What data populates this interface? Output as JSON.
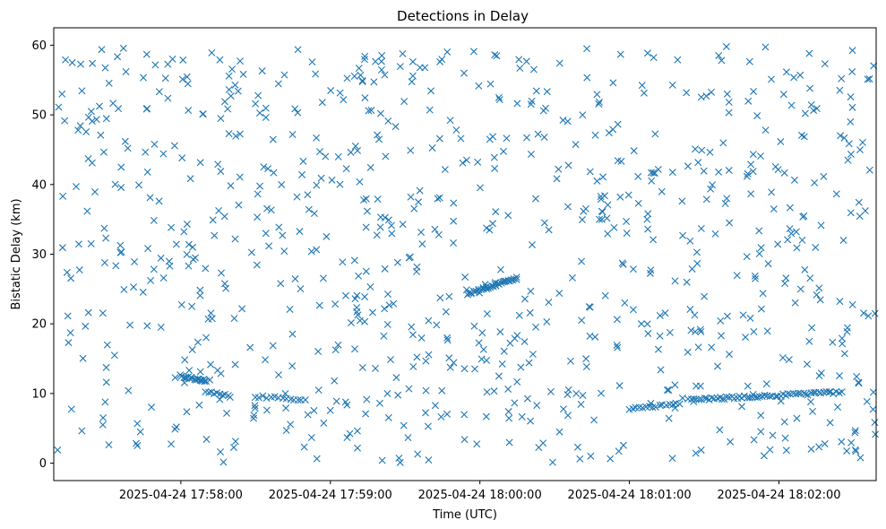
{
  "chart_data": {
    "type": "scatter",
    "title": "Detections in Delay",
    "xlabel": "Time (UTC)",
    "ylabel": "Bistatic Delay (km)",
    "xlim": [
      "2025-04-24 17:57:09",
      "2025-04-24 18:02:39"
    ],
    "ylim": [
      -2.5,
      62.5
    ],
    "x_ticks": [
      "2025-04-24 17:58:00",
      "2025-04-24 17:59:00",
      "2025-04-24 18:00:00",
      "2025-04-24 18:01:00",
      "2025-04-24 18:02:00"
    ],
    "y_ticks": [
      0,
      10,
      20,
      30,
      40,
      50,
      60
    ],
    "grid": false,
    "marker": "x",
    "color": "#1f77b4",
    "x_range_seconds": [
      -171,
      159
    ],
    "noise_seed": 20250424,
    "noise_count": 860,
    "tracks": [
      {
        "t_start": "2025-04-24 17:58:00",
        "t_end": "2025-04-24 17:58:10",
        "y_start": 12.5,
        "y_end": 11.8,
        "count": 18
      },
      {
        "t_start": "2025-04-24 17:58:10",
        "t_end": "2025-04-24 17:58:20",
        "y_start": 10.3,
        "y_end": 9.6,
        "count": 10
      },
      {
        "t_start": "2025-04-24 17:58:30",
        "t_end": "2025-04-24 17:58:50",
        "y_start": 9.6,
        "y_end": 9.1,
        "count": 14
      },
      {
        "t_start": "2025-04-24 17:59:55",
        "t_end": "2025-04-24 18:00:15",
        "y_start": 24.3,
        "y_end": 26.6,
        "count": 34
      },
      {
        "t_start": "2025-04-24 18:01:00",
        "t_end": "2025-04-24 18:01:20",
        "y_start": 7.8,
        "y_end": 8.5,
        "count": 16
      },
      {
        "t_start": "2025-04-24 18:01:25",
        "t_end": "2025-04-24 18:02:25",
        "y_start": 9.1,
        "y_end": 10.2,
        "count": 60
      }
    ]
  }
}
